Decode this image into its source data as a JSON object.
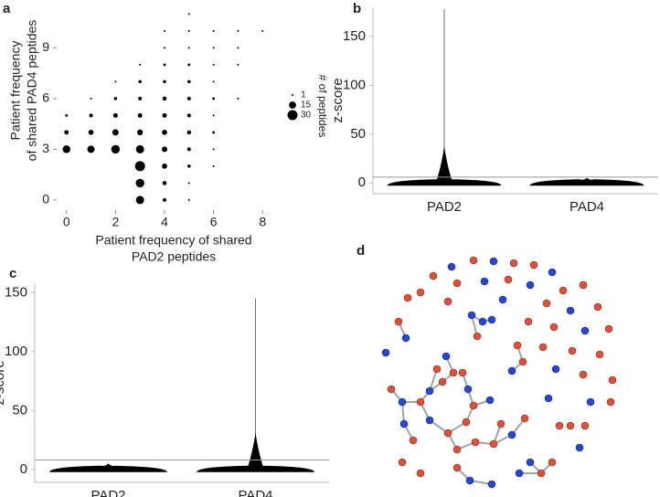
{
  "chart_data": [
    {
      "type": "bubble",
      "panel": "a",
      "xlabel": [
        "Patient frequency of shared",
        "PAD2 peptides"
      ],
      "ylabel": [
        "Patient frequency",
        "of shared PAD4 peptides"
      ],
      "legend_title": "# of peptides",
      "legend_sizes": [
        1,
        15,
        30
      ],
      "color": "#000000",
      "x": [
        3,
        4,
        5,
        3,
        4,
        5,
        3,
        4,
        5,
        6,
        0,
        1,
        2,
        3,
        4,
        5,
        6,
        0,
        1,
        2,
        3,
        4,
        5,
        6,
        0,
        1,
        2,
        3,
        4,
        5,
        6,
        1,
        2,
        3,
        4,
        5,
        6,
        7,
        2,
        3,
        4,
        5,
        6,
        3,
        4,
        5,
        6,
        7,
        4,
        5,
        6,
        7,
        4,
        5,
        6,
        7,
        8,
        5
      ],
      "y": [
        0,
        0,
        0,
        1,
        1,
        1,
        2,
        2,
        2,
        2,
        3,
        3,
        3,
        3,
        3,
        3,
        3,
        4,
        4,
        4,
        4,
        4,
        4,
        4,
        5,
        5,
        5,
        5,
        5,
        5,
        5,
        6,
        6,
        6,
        6,
        6,
        6,
        6,
        7,
        7,
        7,
        7,
        7,
        8,
        8,
        8,
        8,
        8,
        9,
        9,
        9,
        9,
        10,
        10,
        10,
        10,
        10,
        11
      ],
      "sizes": [
        20,
        4,
        1,
        22,
        5,
        1,
        30,
        8,
        3,
        1,
        18,
        16,
        22,
        20,
        9,
        4,
        1,
        6,
        8,
        12,
        10,
        8,
        5,
        2,
        2,
        4,
        6,
        6,
        6,
        4,
        1,
        1,
        3,
        4,
        5,
        4,
        2,
        1,
        1,
        3,
        3,
        3,
        1,
        1,
        2,
        2,
        1,
        1,
        1,
        1,
        1,
        1,
        1,
        1,
        1,
        1,
        1,
        1
      ],
      "xlim": [
        -0.4,
        8.4
      ],
      "xticks": [
        0,
        2,
        4,
        6,
        8
      ],
      "ylim": [
        -0.6,
        11.4
      ],
      "yticks": [
        0,
        3,
        6,
        9
      ]
    },
    {
      "type": "beeswarm",
      "panel": "b",
      "ylabel": "z-score",
      "color": "#000000",
      "categories": [
        "PAD2",
        "PAD4"
      ],
      "max": [
        178,
        5
      ],
      "threshold": 6,
      "ylim": [
        -11,
        180
      ],
      "yticks": [
        0,
        50,
        100,
        150
      ]
    },
    {
      "type": "beeswarm",
      "panel": "c",
      "ylabel": "z-score",
      "color": "#000000",
      "categories": [
        "PAD2",
        "PAD4"
      ],
      "max": [
        5,
        145
      ],
      "threshold": 8,
      "ylim": [
        -11,
        158
      ],
      "yticks": [
        0,
        50,
        100,
        150
      ]
    }
  ],
  "network": {
    "panel": "d"
  }
}
